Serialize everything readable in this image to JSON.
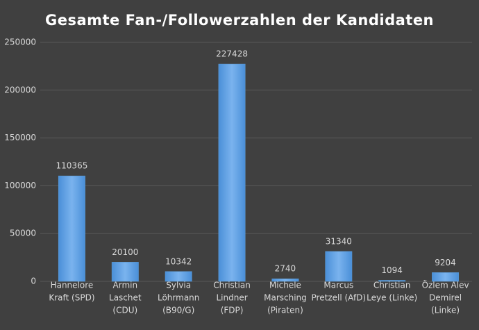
{
  "chart_data": {
    "type": "bar",
    "title": "Gesamte Fan-/Followerzahlen der Kandidaten",
    "categories": [
      [
        "Hannelore",
        "Kraft (SPD)"
      ],
      [
        "Armin",
        "Laschet",
        "(CDU)"
      ],
      [
        "Sylvia",
        "Löhrmann",
        "(B90/G)"
      ],
      [
        "Christian",
        "Lindner",
        "(FDP)"
      ],
      [
        "Michele",
        "Marsching",
        "(Piraten)"
      ],
      [
        "Marcus",
        "Pretzell (AfD)"
      ],
      [
        "Christian",
        "Leye (Linke)"
      ],
      [
        "Özlem Alev",
        "Demirel",
        "(Linke)"
      ]
    ],
    "values": [
      110365,
      20100,
      10342,
      227428,
      2740,
      31340,
      1094,
      9204
    ],
    "color": "#5b9bd5",
    "ylim": [
      0,
      250000
    ],
    "yticks": [
      0,
      50000,
      100000,
      150000,
      200000,
      250000
    ],
    "grid": true
  }
}
